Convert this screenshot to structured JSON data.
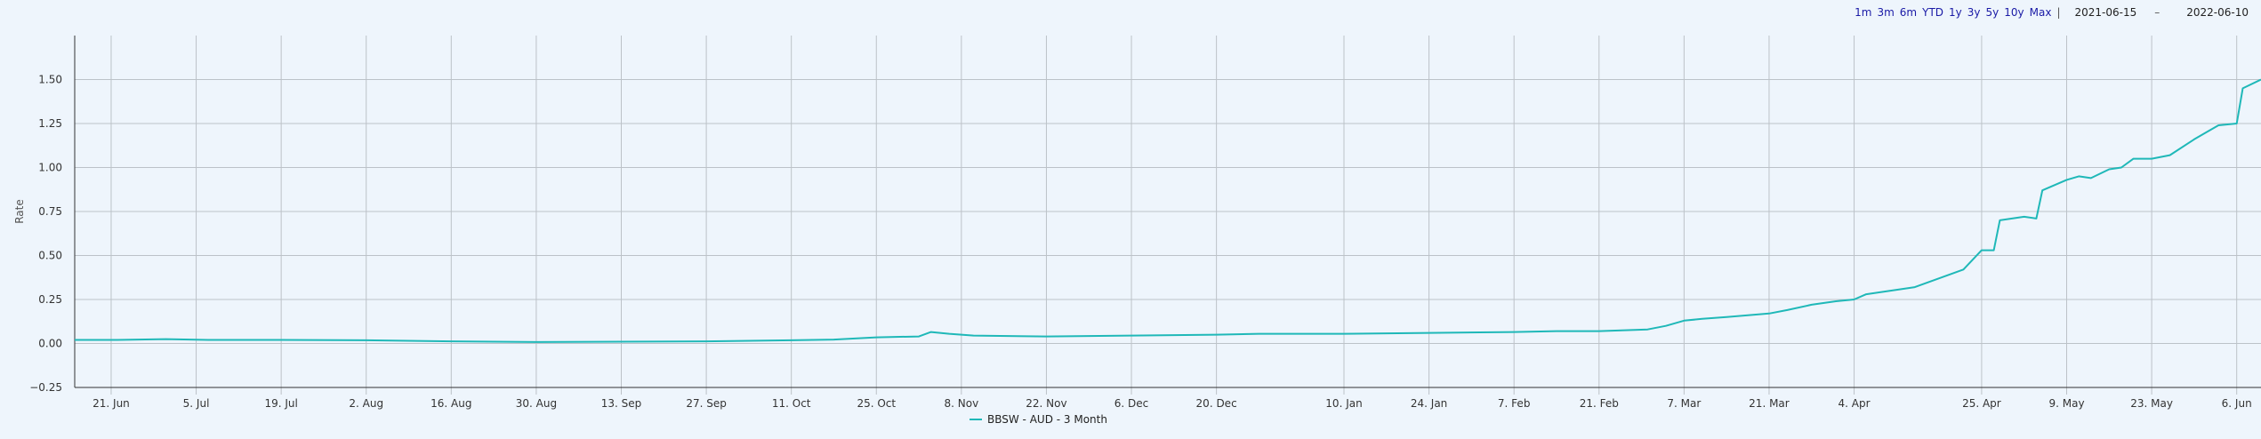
{
  "range_selector": {
    "buttons": [
      "1m",
      "3m",
      "6m",
      "YTD",
      "1y",
      "3y",
      "5y",
      "10y",
      "Max"
    ],
    "separator": "|",
    "start_date": "2021-06-15",
    "dash": "–",
    "end_date": "2022-06-10"
  },
  "chart_data": {
    "type": "line",
    "title": "",
    "xlabel": "",
    "ylabel": "Rate",
    "ylim": [
      -0.25,
      1.75
    ],
    "yticks": [
      -0.25,
      0,
      0.25,
      0.5,
      0.75,
      1.0,
      1.25,
      1.5
    ],
    "ytick_labels": [
      "−0.25",
      "0.00",
      "0.25",
      "0.50",
      "0.75",
      "1.00",
      "1.25",
      "1.50"
    ],
    "xlim": [
      "2021-06-15",
      "2022-06-10"
    ],
    "xticks": [
      {
        "date": "2021-06-21",
        "label": "21. Jun"
      },
      {
        "date": "2021-07-05",
        "label": "5. Jul"
      },
      {
        "date": "2021-07-19",
        "label": "19. Jul"
      },
      {
        "date": "2021-08-02",
        "label": "2. Aug"
      },
      {
        "date": "2021-08-16",
        "label": "16. Aug"
      },
      {
        "date": "2021-08-30",
        "label": "30. Aug"
      },
      {
        "date": "2021-09-13",
        "label": "13. Sep"
      },
      {
        "date": "2021-09-27",
        "label": "27. Sep"
      },
      {
        "date": "2021-10-11",
        "label": "11. Oct"
      },
      {
        "date": "2021-10-25",
        "label": "25. Oct"
      },
      {
        "date": "2021-11-08",
        "label": "8. Nov"
      },
      {
        "date": "2021-11-22",
        "label": "22. Nov"
      },
      {
        "date": "2021-12-06",
        "label": "6. Dec"
      },
      {
        "date": "2021-12-20",
        "label": "20. Dec"
      },
      {
        "date": "2022-01-10",
        "label": "10. Jan"
      },
      {
        "date": "2022-01-24",
        "label": "24. Jan"
      },
      {
        "date": "2022-02-07",
        "label": "7. Feb"
      },
      {
        "date": "2022-02-21",
        "label": "21. Feb"
      },
      {
        "date": "2022-03-07",
        "label": "7. Mar"
      },
      {
        "date": "2022-03-21",
        "label": "21. Mar"
      },
      {
        "date": "2022-04-04",
        "label": "4. Apr"
      },
      {
        "date": "2022-04-25",
        "label": "25. Apr"
      },
      {
        "date": "2022-05-09",
        "label": "9. May"
      },
      {
        "date": "2022-05-23",
        "label": "23. May"
      },
      {
        "date": "2022-06-06",
        "label": "6. Jun"
      }
    ],
    "grid": true,
    "legend_position": "bottom-center",
    "series": [
      {
        "name": "BBSW - AUD - 3 Month",
        "color": "#1fb8b8",
        "points": [
          [
            "2021-06-15",
            0.02
          ],
          [
            "2021-06-22",
            0.02
          ],
          [
            "2021-06-30",
            0.025
          ],
          [
            "2021-07-07",
            0.02
          ],
          [
            "2021-07-19",
            0.02
          ],
          [
            "2021-08-02",
            0.018
          ],
          [
            "2021-08-09",
            0.015
          ],
          [
            "2021-08-16",
            0.012
          ],
          [
            "2021-08-23",
            0.01
          ],
          [
            "2021-08-30",
            0.008
          ],
          [
            "2021-09-13",
            0.01
          ],
          [
            "2021-09-27",
            0.012
          ],
          [
            "2021-10-11",
            0.018
          ],
          [
            "2021-10-18",
            0.022
          ],
          [
            "2021-10-25",
            0.035
          ],
          [
            "2021-11-01",
            0.04
          ],
          [
            "2021-11-03",
            0.065
          ],
          [
            "2021-11-06",
            0.055
          ],
          [
            "2021-11-10",
            0.045
          ],
          [
            "2021-11-22",
            0.04
          ],
          [
            "2021-12-06",
            0.045
          ],
          [
            "2021-12-20",
            0.05
          ],
          [
            "2021-12-27",
            0.055
          ],
          [
            "2022-01-10",
            0.055
          ],
          [
            "2022-01-24",
            0.06
          ],
          [
            "2022-02-07",
            0.065
          ],
          [
            "2022-02-14",
            0.07
          ],
          [
            "2022-02-21",
            0.07
          ],
          [
            "2022-03-01",
            0.08
          ],
          [
            "2022-03-04",
            0.1
          ],
          [
            "2022-03-07",
            0.13
          ],
          [
            "2022-03-10",
            0.14
          ],
          [
            "2022-03-14",
            0.15
          ],
          [
            "2022-03-21",
            0.17
          ],
          [
            "2022-03-24",
            0.19
          ],
          [
            "2022-03-28",
            0.22
          ],
          [
            "2022-04-01",
            0.24
          ],
          [
            "2022-04-04",
            0.25
          ],
          [
            "2022-04-06",
            0.28
          ],
          [
            "2022-04-08",
            0.29
          ],
          [
            "2022-04-12",
            0.31
          ],
          [
            "2022-04-14",
            0.32
          ],
          [
            "2022-04-18",
            0.37
          ],
          [
            "2022-04-22",
            0.42
          ],
          [
            "2022-04-25",
            0.53
          ],
          [
            "2022-04-27",
            0.53
          ],
          [
            "2022-04-28",
            0.7
          ],
          [
            "2022-05-02",
            0.72
          ],
          [
            "2022-05-04",
            0.71
          ],
          [
            "2022-05-05",
            0.87
          ],
          [
            "2022-05-09",
            0.93
          ],
          [
            "2022-05-11",
            0.95
          ],
          [
            "2022-05-13",
            0.94
          ],
          [
            "2022-05-16",
            0.99
          ],
          [
            "2022-05-18",
            1.0
          ],
          [
            "2022-05-20",
            1.05
          ],
          [
            "2022-05-23",
            1.05
          ],
          [
            "2022-05-26",
            1.07
          ],
          [
            "2022-05-30",
            1.16
          ],
          [
            "2022-06-01",
            1.2
          ],
          [
            "2022-06-03",
            1.24
          ],
          [
            "2022-06-06",
            1.25
          ],
          [
            "2022-06-07",
            1.45
          ],
          [
            "2022-06-10",
            1.5
          ]
        ]
      }
    ]
  }
}
